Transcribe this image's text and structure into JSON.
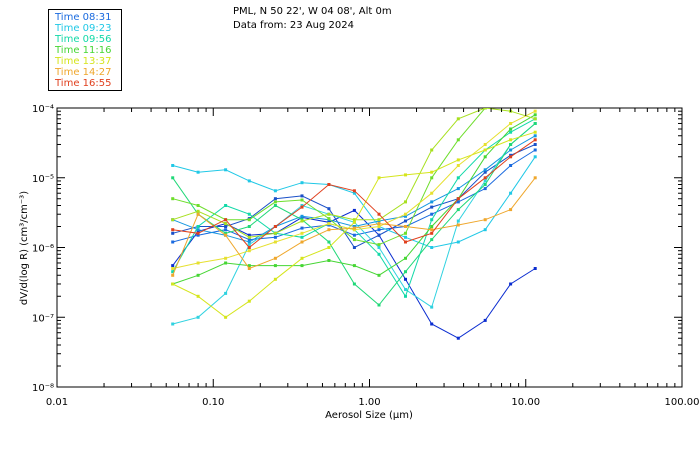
{
  "header": {
    "line1": "PML, N 50 22', W 04 08', Alt 0m",
    "line2": "Data from: 23 Aug 2024"
  },
  "legend": [
    {
      "label": "Time 08:31",
      "color": "#1a6adf"
    },
    {
      "label": "Time 09:23",
      "color": "#20c8e6"
    },
    {
      "label": "Time 09:56",
      "color": "#12d9a8"
    },
    {
      "label": "Time 11:16",
      "color": "#46d634"
    },
    {
      "label": "Time 13:37",
      "color": "#d5e51c"
    },
    {
      "label": "Time 14:27",
      "color": "#efa72c"
    },
    {
      "label": "Time 16:55",
      "color": "#e0401e"
    }
  ],
  "chart_data": {
    "type": "line",
    "xscale": "log",
    "yscale": "log",
    "xlim": [
      0.01,
      100
    ],
    "ylim": [
      1e-08,
      0.0001
    ],
    "xlabel": "Aerosol Size (µm)",
    "ylabel": "dV/d(log R) (cm³/cm⁻³)",
    "xticks": [
      "0.01",
      "0.10",
      "1.00",
      "10.00",
      "100.00"
    ],
    "yticks": [
      "10⁻⁸",
      "10⁻⁷",
      "10⁻⁶",
      "10⁻⁵",
      "10⁻⁴"
    ],
    "x": [
      0.055,
      0.08,
      0.12,
      0.17,
      0.25,
      0.37,
      0.55,
      0.8,
      1.15,
      1.7,
      2.5,
      3.7,
      5.5,
      8.0,
      11.5
    ],
    "series": [
      {
        "color": "#0a2cd0",
        "values": [
          5.5e-07,
          1.7e-06,
          2.2e-06,
          1.5e-06,
          1.6e-06,
          2.7e-06,
          2.3e-06,
          3.4e-06,
          1.5e-06,
          3.5e-07,
          8e-08,
          5e-08,
          9e-08,
          3e-07,
          5e-07
        ]
      },
      {
        "color": "#1a6adf",
        "values": [
          1.2e-06,
          1.5e-06,
          1.8e-06,
          1.3e-06,
          1.4e-06,
          1.9e-06,
          2.1e-06,
          1.5e-06,
          1.8e-06,
          2e-06,
          3e-06,
          4.5e-06,
          7e-06,
          1.5e-05,
          2.5e-05
        ]
      },
      {
        "color": "#1a50c8",
        "values": [
          1.6e-06,
          2e-06,
          2e-06,
          2.6e-06,
          5e-06,
          5.5e-06,
          3.6e-06,
          1e-06,
          1.5e-06,
          2.4e-06,
          3.8e-06,
          5e-06,
          1.2e-05,
          2.1e-05,
          3e-05
        ]
      },
      {
        "color": "#1496e0",
        "values": [
          2.5e-06,
          1.8e-06,
          1.5e-06,
          1.2e-06,
          2e-06,
          2.8e-06,
          2.5e-06,
          2e-06,
          2.4e-06,
          2.8e-06,
          4.5e-06,
          7e-06,
          1.3e-05,
          2.5e-05,
          4e-05
        ]
      },
      {
        "color": "#20c8e6",
        "values": [
          1.5e-05,
          1.2e-05,
          1.3e-05,
          9e-06,
          6.5e-06,
          8.5e-06,
          8e-06,
          6e-06,
          2e-06,
          1.4e-06,
          1e-06,
          1.2e-06,
          1.8e-06,
          6e-06,
          2e-05
        ]
      },
      {
        "color": "#30d2e0",
        "values": [
          8e-08,
          1e-07,
          2.2e-07,
          1.1e-06,
          2e-06,
          4e-06,
          3e-06,
          2.3e-06,
          1e-06,
          2.5e-07,
          1.4e-07,
          2.4e-06,
          9e-06,
          3e-05,
          6e-05
        ]
      },
      {
        "color": "#12d9a8",
        "values": [
          4.5e-07,
          2e-06,
          4e-06,
          3e-06,
          1.6e-06,
          1.4e-06,
          2.2e-06,
          1.8e-06,
          8e-07,
          2e-07,
          2.5e-06,
          1e-05,
          2.5e-05,
          4.5e-05,
          7e-05
        ]
      },
      {
        "color": "#20d878",
        "values": [
          1e-05,
          3e-06,
          1.6e-06,
          2e-06,
          4e-06,
          2.5e-06,
          1.2e-06,
          3e-07,
          1.5e-07,
          4.5e-07,
          1.3e-06,
          3.5e-06,
          8e-06,
          3e-05,
          6e-05
        ]
      },
      {
        "color": "#46d634",
        "values": [
          3e-07,
          4e-07,
          6e-07,
          5.5e-07,
          5.5e-07,
          5.5e-07,
          6.5e-07,
          5.5e-07,
          4e-07,
          7e-07,
          2e-06,
          5e-06,
          2e-05,
          5e-05,
          8e-05
        ]
      },
      {
        "color": "#6ede2c",
        "values": [
          5e-06,
          4e-06,
          2.5e-06,
          2.5e-06,
          4.5e-06,
          4.8e-06,
          2.6e-06,
          1.3e-06,
          1.1e-06,
          1.6e-06,
          1e-05,
          3.5e-05,
          0.0001,
          0.00012,
          0.00012
        ]
      },
      {
        "color": "#a8e020",
        "values": [
          2.5e-06,
          3.3e-06,
          2.2e-06,
          1.4e-06,
          1.6e-06,
          2.4e-06,
          3e-06,
          2.5e-06,
          2.5e-06,
          4.5e-06,
          2.5e-05,
          7e-05,
          0.0001,
          9e-05,
          7e-05
        ]
      },
      {
        "color": "#d5e51c",
        "values": [
          3e-07,
          2e-07,
          1e-07,
          1.7e-07,
          3.5e-07,
          7e-07,
          1e-06,
          2.3e-06,
          1e-05,
          1.1e-05,
          1.2e-05,
          1.8e-05,
          2.5e-05,
          3.5e-05,
          4.5e-05
        ]
      },
      {
        "color": "#e6e030",
        "values": [
          5e-07,
          6e-07,
          7e-07,
          9e-07,
          1.2e-06,
          1.6e-06,
          2.2e-06,
          1.8e-06,
          2e-06,
          3e-06,
          6e-06,
          1.5e-05,
          3e-05,
          6e-05,
          9e-05
        ]
      },
      {
        "color": "#efa72c",
        "values": [
          4e-07,
          3e-06,
          1.5e-06,
          5e-07,
          7e-07,
          1.2e-06,
          1.8e-06,
          1.9e-06,
          2.2e-06,
          2e-06,
          1.8e-06,
          2.1e-06,
          2.5e-06,
          3.5e-06,
          1e-05
        ]
      },
      {
        "color": "#e0401e",
        "values": [
          1.8e-06,
          1.6e-06,
          2.5e-06,
          1e-06,
          2e-06,
          3.8e-06,
          8e-06,
          6.5e-06,
          3e-06,
          1.2e-06,
          1.6e-06,
          5e-06,
          1e-05,
          2e-05,
          3.5e-05
        ]
      }
    ]
  }
}
